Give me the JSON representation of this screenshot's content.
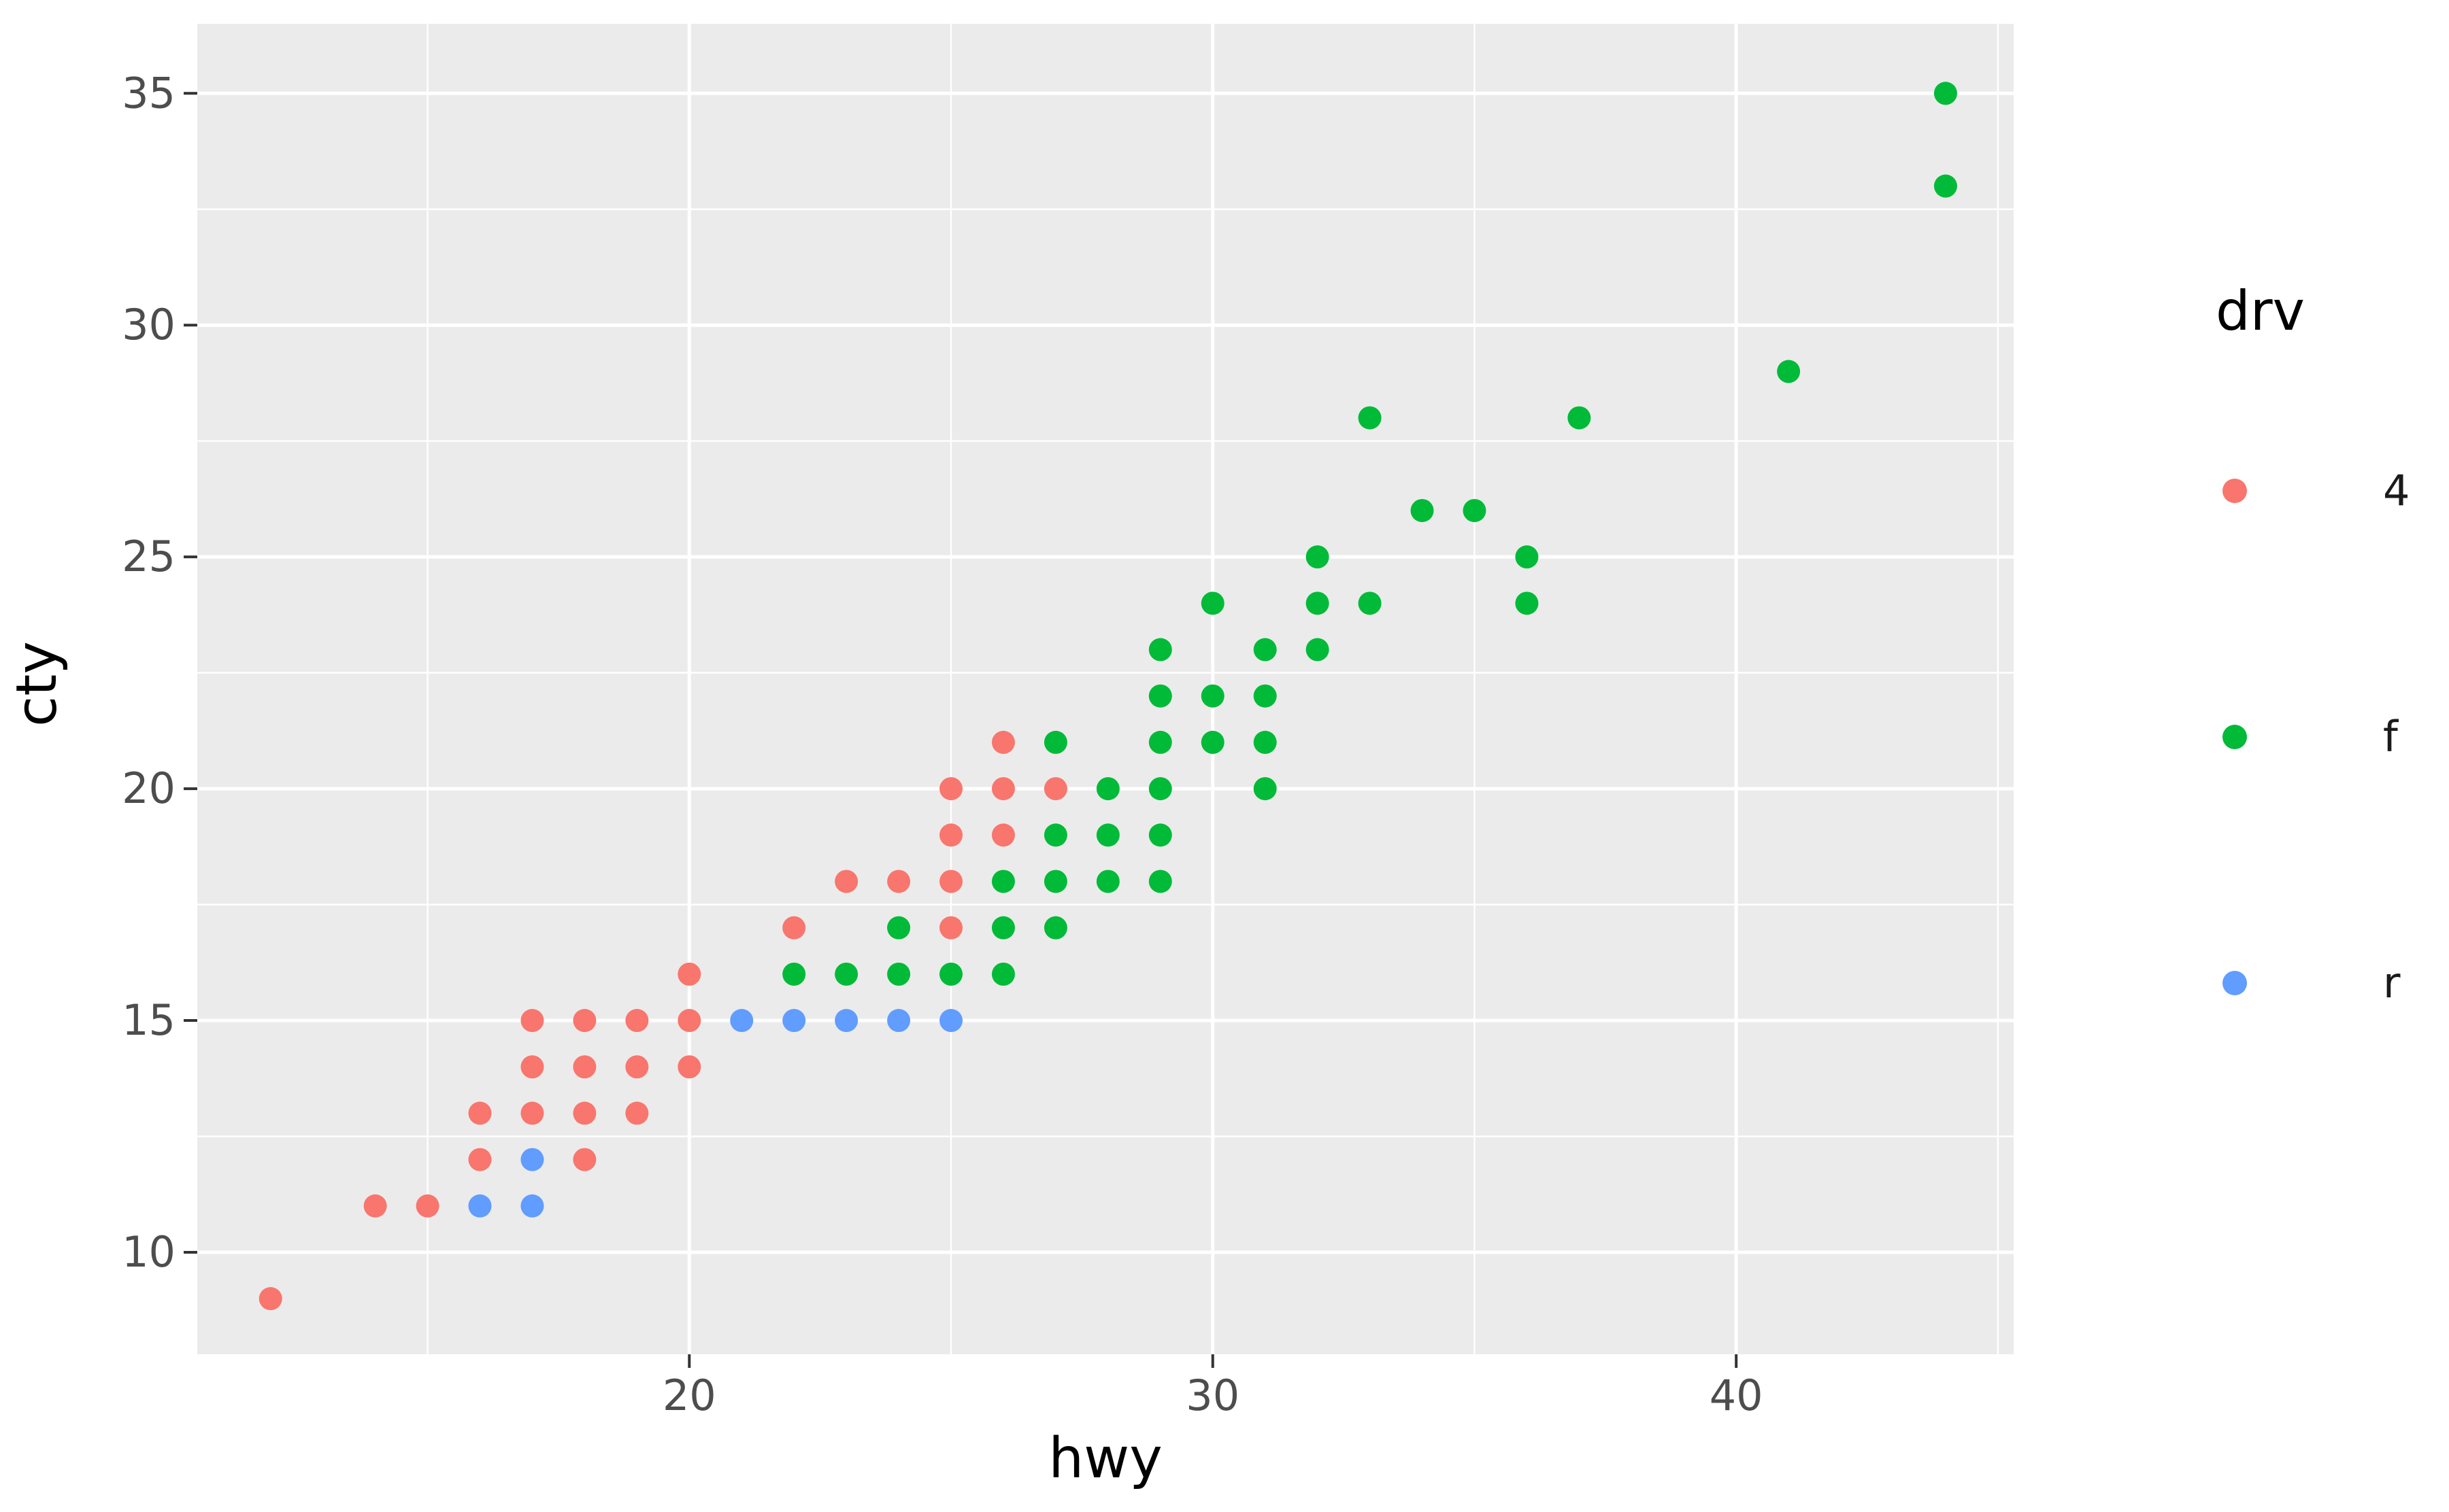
{
  "chart_data": {
    "type": "scatter",
    "title": "",
    "xlabel": "hwy",
    "ylabel": "cty",
    "xlim": [
      10.6,
      45.3
    ],
    "ylim": [
      7.8,
      36.5
    ],
    "x_ticks": [
      20,
      30,
      40
    ],
    "y_ticks": [
      10,
      15,
      20,
      25,
      30,
      35
    ],
    "x_minor_ticks": [
      15,
      25,
      35,
      45
    ],
    "y_minor_ticks": [
      12.5,
      17.5,
      22.5,
      27.5,
      32.5
    ],
    "grid": true,
    "legend": {
      "title": "drv",
      "position": "right",
      "entries": [
        {
          "label": "4",
          "color": "#F8766D"
        },
        {
          "label": "f",
          "color": "#00BA38"
        },
        {
          "label": "r",
          "color": "#619CFF"
        }
      ]
    },
    "colors": {
      "panel_bg": "#EBEBEB",
      "grid": "#FFFFFF",
      "tick_mark": "#333333",
      "tick_text": "#4D4D4D",
      "axis_text": "#000000"
    },
    "series": [
      {
        "name": "4",
        "color": "#F8766D",
        "points": [
          [
            12,
            9
          ],
          [
            14,
            11
          ],
          [
            15,
            11
          ],
          [
            16,
            12
          ],
          [
            16,
            13
          ],
          [
            17,
            13
          ],
          [
            17,
            14
          ],
          [
            17,
            15
          ],
          [
            18,
            12
          ],
          [
            18,
            13
          ],
          [
            18,
            14
          ],
          [
            18,
            15
          ],
          [
            19,
            13
          ],
          [
            19,
            14
          ],
          [
            19,
            15
          ],
          [
            20,
            14
          ],
          [
            20,
            15
          ],
          [
            20,
            16
          ],
          [
            22,
            17
          ],
          [
            23,
            18
          ],
          [
            24,
            18
          ],
          [
            25,
            17
          ],
          [
            25,
            18
          ],
          [
            25,
            19
          ],
          [
            25,
            20
          ],
          [
            26,
            19
          ],
          [
            26,
            20
          ],
          [
            26,
            21
          ],
          [
            27,
            20
          ]
        ]
      },
      {
        "name": "f",
        "color": "#00BA38",
        "points": [
          [
            22,
            16
          ],
          [
            23,
            16
          ],
          [
            24,
            16
          ],
          [
            24,
            17
          ],
          [
            25,
            16
          ],
          [
            26,
            16
          ],
          [
            26,
            17
          ],
          [
            26,
            18
          ],
          [
            27,
            17
          ],
          [
            27,
            18
          ],
          [
            27,
            19
          ],
          [
            27,
            21
          ],
          [
            28,
            18
          ],
          [
            28,
            19
          ],
          [
            28,
            20
          ],
          [
            29,
            18
          ],
          [
            29,
            19
          ],
          [
            29,
            20
          ],
          [
            29,
            21
          ],
          [
            29,
            22
          ],
          [
            29,
            23
          ],
          [
            30,
            21
          ],
          [
            30,
            22
          ],
          [
            30,
            24
          ],
          [
            31,
            20
          ],
          [
            31,
            21
          ],
          [
            31,
            22
          ],
          [
            31,
            23
          ],
          [
            32,
            23
          ],
          [
            32,
            24
          ],
          [
            32,
            25
          ],
          [
            33,
            24
          ],
          [
            33,
            28
          ],
          [
            34,
            26
          ],
          [
            35,
            26
          ],
          [
            36,
            24
          ],
          [
            36,
            25
          ],
          [
            37,
            28
          ],
          [
            41,
            29
          ],
          [
            44,
            33
          ],
          [
            44,
            35
          ]
        ]
      },
      {
        "name": "r",
        "color": "#619CFF",
        "points": [
          [
            16,
            11
          ],
          [
            17,
            11
          ],
          [
            17,
            12
          ],
          [
            21,
            15
          ],
          [
            22,
            15
          ],
          [
            23,
            15
          ],
          [
            24,
            15
          ],
          [
            25,
            15
          ]
        ]
      }
    ]
  }
}
